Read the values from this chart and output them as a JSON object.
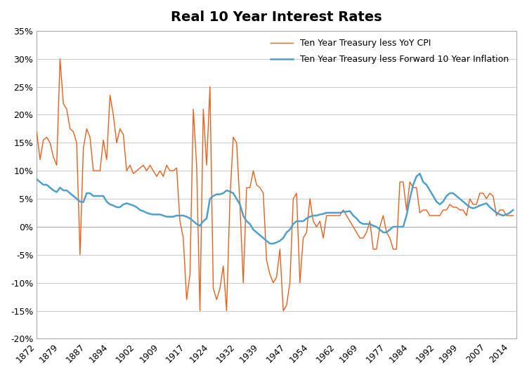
{
  "title": "Real 10 Year Interest Rates",
  "legend1": "Ten Year Treasury less YoY CPI",
  "legend2": "Ten Year Treasury less Forward 10 Year Inflation",
  "color1": "#E8601C",
  "color2": "#4E9FCC",
  "lw1": 1.0,
  "lw2": 1.8,
  "ylim": [
    -0.2,
    0.35
  ],
  "yticks": [
    -0.2,
    -0.15,
    -0.1,
    -0.05,
    0.0,
    0.05,
    0.1,
    0.15,
    0.2,
    0.25,
    0.3,
    0.35
  ],
  "xtick_labels": [
    "1872",
    "1879",
    "1887",
    "1894",
    "1902",
    "1909",
    "1917",
    "1924",
    "1932",
    "1939",
    "1947",
    "1954",
    "1962",
    "1969",
    "1977",
    "1984",
    "1992",
    "1999",
    "2007",
    "2014"
  ],
  "xtick_years": [
    1872,
    1879,
    1887,
    1894,
    1902,
    1909,
    1917,
    1924,
    1932,
    1939,
    1947,
    1954,
    1962,
    1969,
    1977,
    1984,
    1992,
    1999,
    2007,
    2014
  ],
  "title_fontsize": 14,
  "tick_fontsize": 9,
  "legend_fontsize": 9,
  "background_color": "#FFFFFF",
  "grid_color": "#CCCCCC",
  "series1_years": [
    1872,
    1873,
    1874,
    1875,
    1876,
    1877,
    1878,
    1879,
    1880,
    1881,
    1882,
    1883,
    1884,
    1885,
    1886,
    1887,
    1888,
    1889,
    1890,
    1891,
    1892,
    1893,
    1894,
    1895,
    1896,
    1897,
    1898,
    1899,
    1900,
    1901,
    1902,
    1903,
    1904,
    1905,
    1906,
    1907,
    1908,
    1909,
    1910,
    1911,
    1912,
    1913,
    1914,
    1915,
    1916,
    1917,
    1918,
    1919,
    1920,
    1921,
    1922,
    1923,
    1924,
    1925,
    1926,
    1927,
    1928,
    1929,
    1930,
    1931,
    1932,
    1933,
    1934,
    1935,
    1936,
    1937,
    1938,
    1939,
    1940,
    1941,
    1942,
    1943,
    1944,
    1945,
    1946,
    1947,
    1948,
    1949,
    1950,
    1951,
    1952,
    1953,
    1954,
    1955,
    1956,
    1957,
    1958,
    1959,
    1960,
    1961,
    1962,
    1963,
    1964,
    1965,
    1966,
    1967,
    1968,
    1969,
    1970,
    1971,
    1972,
    1973,
    1974,
    1975,
    1976,
    1977,
    1978,
    1979,
    1980,
    1981,
    1982,
    1983,
    1984,
    1985,
    1986,
    1987,
    1988,
    1989,
    1990,
    1991,
    1992,
    1993,
    1994,
    1995,
    1996,
    1997,
    1998,
    1999,
    2000,
    2001,
    2002,
    2003,
    2004,
    2005,
    2006,
    2007,
    2008,
    2009,
    2010,
    2011,
    2012,
    2013,
    2014,
    2015
  ],
  "series1_values": [
    0.17,
    0.12,
    0.155,
    0.16,
    0.15,
    0.125,
    0.11,
    0.3,
    0.22,
    0.21,
    0.175,
    0.17,
    0.15,
    -0.05,
    0.14,
    0.175,
    0.16,
    0.1,
    0.1,
    0.1,
    0.155,
    0.12,
    0.235,
    0.2,
    0.15,
    0.175,
    0.165,
    0.1,
    0.11,
    0.095,
    0.1,
    0.105,
    0.11,
    0.1,
    0.11,
    0.1,
    0.09,
    0.1,
    0.09,
    0.11,
    0.1,
    0.1,
    0.105,
    0.01,
    -0.02,
    -0.13,
    -0.085,
    0.21,
    0.11,
    -0.15,
    0.21,
    0.11,
    0.25,
    -0.11,
    -0.13,
    -0.11,
    -0.07,
    -0.15,
    0.05,
    0.16,
    0.15,
    0.04,
    -0.1,
    0.07,
    0.07,
    0.1,
    0.075,
    0.07,
    0.06,
    -0.06,
    -0.085,
    -0.1,
    -0.09,
    -0.04,
    -0.15,
    -0.14,
    -0.1,
    0.05,
    0.06,
    -0.1,
    -0.02,
    -0.01,
    0.05,
    0.01,
    0.0,
    0.01,
    -0.02,
    0.02,
    0.02,
    0.02,
    0.02,
    0.02,
    0.03,
    0.02,
    0.01,
    0.0,
    -0.01,
    -0.02,
    -0.02,
    -0.01,
    0.01,
    -0.04,
    -0.04,
    0.0,
    0.02,
    -0.01,
    -0.02,
    -0.04,
    -0.04,
    0.08,
    0.08,
    0.03,
    0.08,
    0.07,
    0.07,
    0.025,
    0.03,
    0.03,
    0.02,
    0.02,
    0.02,
    0.02,
    0.03,
    0.03,
    0.04,
    0.035,
    0.035,
    0.03,
    0.03,
    0.02,
    0.05,
    0.04,
    0.04,
    0.06,
    0.06,
    0.05,
    0.06,
    0.055,
    0.02,
    0.03,
    0.03,
    0.02,
    0.02,
    0.02,
    0.02
  ],
  "series2_years": [
    1872,
    1873,
    1874,
    1875,
    1876,
    1877,
    1878,
    1879,
    1880,
    1881,
    1882,
    1883,
    1884,
    1885,
    1886,
    1887,
    1888,
    1889,
    1890,
    1891,
    1892,
    1893,
    1894,
    1895,
    1896,
    1897,
    1898,
    1899,
    1900,
    1901,
    1902,
    1903,
    1904,
    1905,
    1906,
    1907,
    1908,
    1909,
    1910,
    1911,
    1912,
    1913,
    1914,
    1915,
    1916,
    1917,
    1918,
    1919,
    1920,
    1921,
    1922,
    1923,
    1924,
    1925,
    1926,
    1927,
    1928,
    1929,
    1930,
    1931,
    1932,
    1933,
    1934,
    1935,
    1936,
    1937,
    1938,
    1939,
    1940,
    1941,
    1942,
    1943,
    1944,
    1945,
    1946,
    1947,
    1948,
    1949,
    1950,
    1951,
    1952,
    1953,
    1954,
    1955,
    1956,
    1957,
    1958,
    1959,
    1960,
    1961,
    1962,
    1963,
    1964,
    1965,
    1966,
    1967,
    1968,
    1969,
    1970,
    1971,
    1972,
    1973,
    1974,
    1975,
    1976,
    1977,
    1978,
    1979,
    1980,
    1981,
    1982,
    1983,
    1984,
    1985,
    1986,
    1987,
    1988,
    1989,
    1990,
    1991,
    1992,
    1993,
    1994,
    1995,
    1996,
    1997,
    1998,
    1999,
    2000,
    2001,
    2002,
    2003,
    2004,
    2005,
    2006,
    2007,
    2008,
    2009,
    2010,
    2011,
    2012,
    2013,
    2014,
    2015
  ],
  "series2_values": [
    0.085,
    0.08,
    0.075,
    0.075,
    0.07,
    0.065,
    0.062,
    0.07,
    0.065,
    0.065,
    0.06,
    0.055,
    0.05,
    0.045,
    0.044,
    0.06,
    0.06,
    0.055,
    0.055,
    0.055,
    0.055,
    0.045,
    0.04,
    0.038,
    0.035,
    0.035,
    0.04,
    0.042,
    0.04,
    0.038,
    0.035,
    0.03,
    0.028,
    0.025,
    0.023,
    0.022,
    0.022,
    0.022,
    0.02,
    0.018,
    0.018,
    0.018,
    0.02,
    0.02,
    0.02,
    0.018,
    0.015,
    0.01,
    0.005,
    0.002,
    0.01,
    0.015,
    0.05,
    0.055,
    0.058,
    0.058,
    0.06,
    0.065,
    0.063,
    0.06,
    0.05,
    0.04,
    0.02,
    0.01,
    0.005,
    -0.005,
    -0.01,
    -0.015,
    -0.02,
    -0.025,
    -0.03,
    -0.03,
    -0.028,
    -0.025,
    -0.02,
    -0.01,
    -0.005,
    0.005,
    0.01,
    0.01,
    0.01,
    0.015,
    0.018,
    0.02,
    0.02,
    0.022,
    0.023,
    0.025,
    0.025,
    0.025,
    0.025,
    0.025,
    0.027,
    0.027,
    0.028,
    0.02,
    0.015,
    0.008,
    0.005,
    0.005,
    0.005,
    0.002,
    0.0,
    -0.005,
    -0.01,
    -0.01,
    -0.005,
    0.0,
    0.0,
    0.0,
    0.0,
    0.02,
    0.05,
    0.075,
    0.09,
    0.095,
    0.08,
    0.075,
    0.065,
    0.055,
    0.045,
    0.04,
    0.045,
    0.055,
    0.06,
    0.06,
    0.055,
    0.05,
    0.045,
    0.04,
    0.035,
    0.033,
    0.035,
    0.038,
    0.04,
    0.042,
    0.035,
    0.03,
    0.025,
    0.022,
    0.02,
    0.022,
    0.025,
    0.03
  ]
}
